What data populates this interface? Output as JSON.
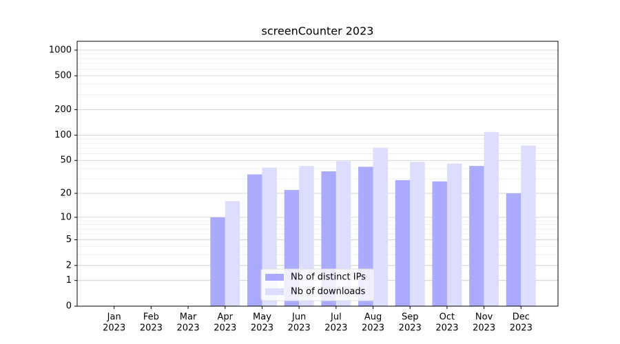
{
  "chart_data": {
    "type": "bar",
    "title": "screenCounter 2023",
    "categories": [
      [
        "Jan",
        "2023"
      ],
      [
        "Feb",
        "2023"
      ],
      [
        "Mar",
        "2023"
      ],
      [
        "Apr",
        "2023"
      ],
      [
        "May",
        "2023"
      ],
      [
        "Jun",
        "2023"
      ],
      [
        "Jul",
        "2023"
      ],
      [
        "Aug",
        "2023"
      ],
      [
        "Sep",
        "2023"
      ],
      [
        "Oct",
        "2023"
      ],
      [
        "Nov",
        "2023"
      ],
      [
        "Dec",
        "2023"
      ]
    ],
    "series": [
      {
        "name": "Nb of distinct IPs",
        "color": "#aaaaff",
        "values": [
          0,
          0,
          0,
          10,
          34,
          22,
          37,
          42,
          29,
          28,
          43,
          20
        ]
      },
      {
        "name": "Nb of downloads",
        "color": "#ddddff",
        "values": [
          0,
          0,
          0,
          16,
          41,
          43,
          49,
          71,
          48,
          46,
          109,
          75
        ]
      }
    ],
    "yscale": "log1p",
    "ylim": [
      0,
      1270
    ],
    "yticks": [
      0,
      1,
      2,
      5,
      10,
      20,
      50,
      100,
      200,
      500,
      1000
    ],
    "grid": true,
    "minor_grid": true,
    "legend": "lower center"
  }
}
